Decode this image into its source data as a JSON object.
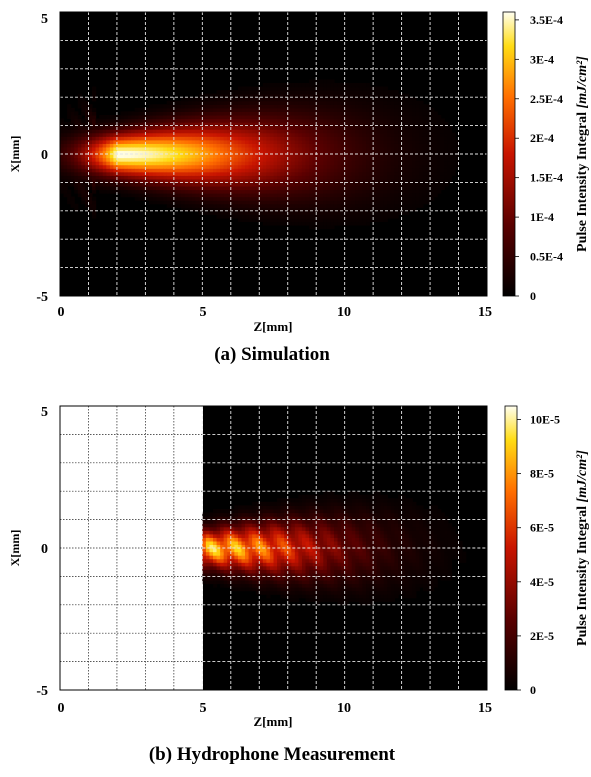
{
  "chart_data": [
    {
      "type": "heatmap",
      "caption": "(a) Simulation",
      "xlabel": "Z[mm]",
      "ylabel": "X[mm]",
      "xlim": [
        0,
        15
      ],
      "ylim": [
        -5,
        5
      ],
      "x_ticks": [
        "0",
        "5",
        "10",
        "15"
      ],
      "y_ticks": [
        "5",
        "0",
        "-5"
      ],
      "grid": true,
      "colorbar": {
        "label_text": "Pulse Intensity Integral ",
        "label_unit": "[mJ/cm²]",
        "range": [
          0,
          0.00036
        ],
        "ticks": [
          {
            "value": 0,
            "label": "0"
          },
          {
            "value": 5e-05,
            "label": "0.5E-4"
          },
          {
            "value": 0.0001,
            "label": "1E-4"
          },
          {
            "value": 0.00015,
            "label": "1.5E-4"
          },
          {
            "value": 0.0002,
            "label": "2E-4"
          },
          {
            "value": 0.00025,
            "label": "2.5E-4"
          },
          {
            "value": 0.0003,
            "label": "3E-4"
          },
          {
            "value": 0.00035,
            "label": "3.5E-4"
          }
        ]
      },
      "field": {
        "measured_from_z": 0,
        "peak_z": 2,
        "peak_value": 0.00036,
        "fade_z": 11,
        "beam_halfwidth_x": 0.5
      }
    },
    {
      "type": "heatmap",
      "caption": "(b) Hydrophone Measurement",
      "xlabel": "Z[mm]",
      "ylabel": "X[mm]",
      "xlim": [
        0,
        15
      ],
      "ylim": [
        -5,
        5
      ],
      "x_ticks": [
        "0",
        "5",
        "10",
        "15"
      ],
      "y_ticks": [
        "5",
        "0",
        "-5"
      ],
      "grid": true,
      "colorbar": {
        "label_text": "Pulse Intensity Integral ",
        "label_unit": "[mJ/cm²]",
        "range": [
          0,
          0.000105
        ],
        "ticks": [
          {
            "value": 0,
            "label": "0"
          },
          {
            "value": 2e-05,
            "label": "2E-5"
          },
          {
            "value": 4e-05,
            "label": "4E-5"
          },
          {
            "value": 6e-05,
            "label": "6E-5"
          },
          {
            "value": 8e-05,
            "label": "8E-5"
          },
          {
            "value": 0.0001,
            "label": "10E-5"
          }
        ]
      },
      "field": {
        "measured_from_z": 5,
        "peak_z": 5.1,
        "peak_value": 0.0001,
        "fade_z": 12,
        "beam_halfwidth_x": 0.45
      }
    }
  ]
}
